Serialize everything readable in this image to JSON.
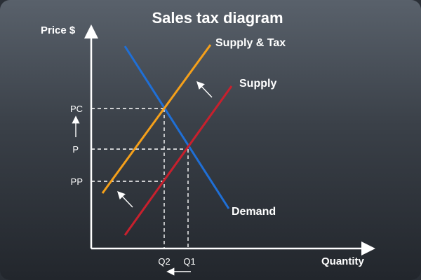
{
  "title": "Sales tax diagram",
  "axes": {
    "y_label": "Price $",
    "x_label": "Quantity"
  },
  "curves": {
    "supply_tax": {
      "label": "Supply & Tax",
      "color": "#f5a01a"
    },
    "supply": {
      "label": "Supply",
      "color": "#c8202d"
    },
    "demand": {
      "label": "Demand",
      "color": "#1f6fd6"
    }
  },
  "price_ticks": {
    "pc": "PC",
    "p": "P",
    "pp": "PP"
  },
  "quantity_ticks": {
    "q2": "Q2",
    "q1": "Q1"
  },
  "colors": {
    "axis": "#ffffff",
    "guide": "#ffffff",
    "arrow": "#ffffff"
  },
  "icons": [
    "arrow-up-icon",
    "arrow-left-icon",
    "arrow-up-left-icon"
  ]
}
